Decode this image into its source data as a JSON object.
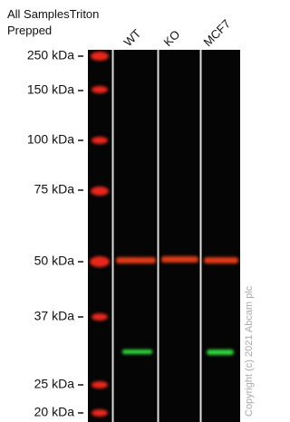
{
  "header": {
    "lines": [
      "All SamplesTriton",
      "Prepped"
    ]
  },
  "lanes": [
    "WT",
    "KO",
    "MCF7"
  ],
  "markers": [
    "250 kDa",
    "150 kDa",
    "100 kDa",
    "75 kDa",
    "50 kDa",
    "37 kDa",
    "25 kDa",
    "20 kDa"
  ],
  "copyright": "Copyright (c) 2021 Abcam plc"
}
